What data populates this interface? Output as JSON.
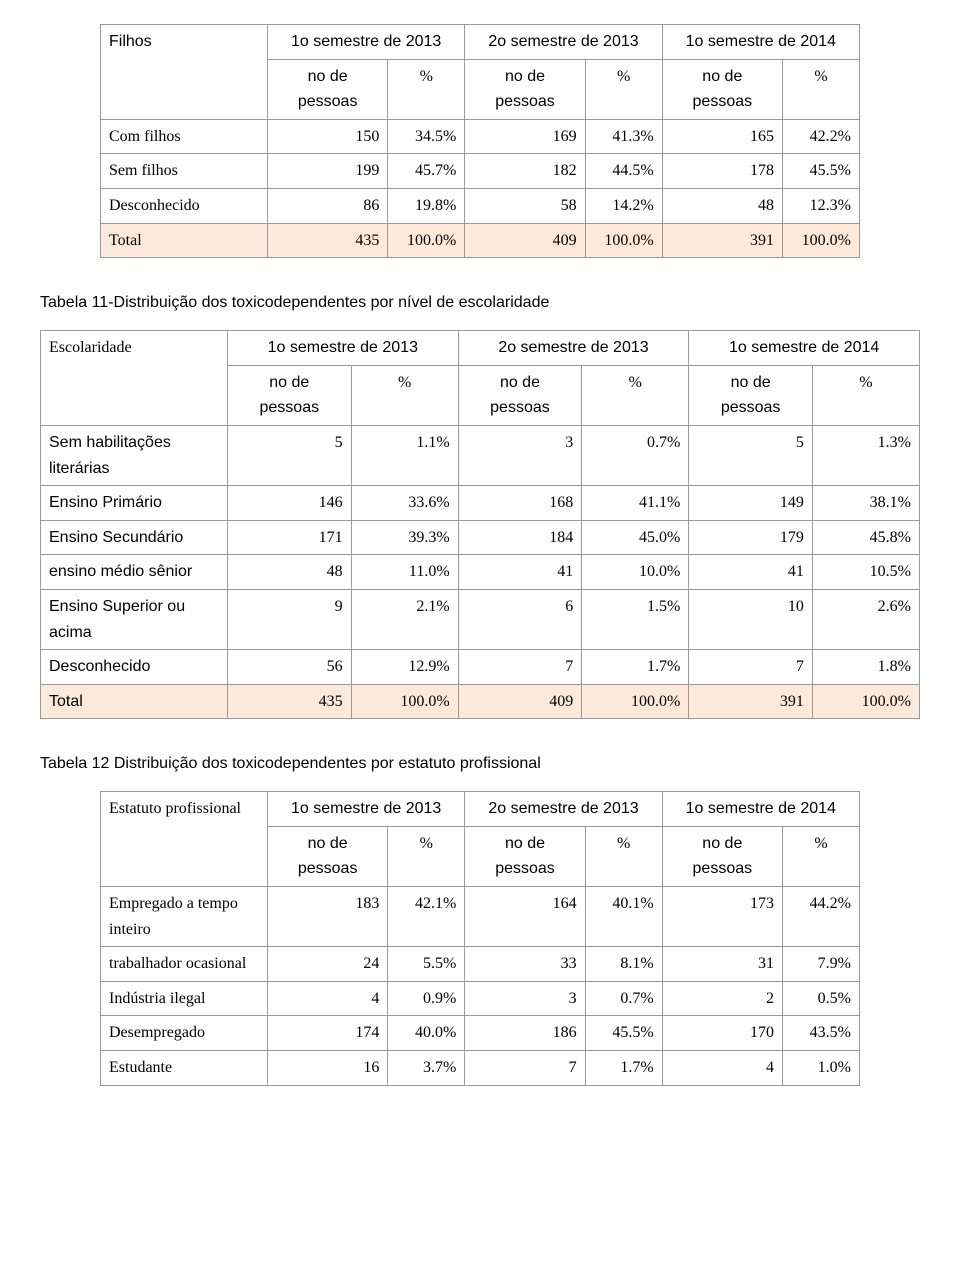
{
  "periods": [
    "1o semestre de 2013",
    "2o semestre de 2013",
    "1o semestre de 2014"
  ],
  "subhead": {
    "n": "no de",
    "n2": "pessoas",
    "pct": "%"
  },
  "t1": {
    "header": "Filhos",
    "rows": [
      [
        "Com filhos",
        "150",
        "34.5%",
        "169",
        "41.3%",
        "165",
        "42.2%",
        false
      ],
      [
        "Sem filhos",
        "199",
        "45.7%",
        "182",
        "44.5%",
        "178",
        "45.5%",
        false
      ],
      [
        "Desconhecido",
        "86",
        "19.8%",
        "58",
        "14.2%",
        "48",
        "12.3%",
        false
      ],
      [
        "Total",
        "435",
        "100.0%",
        "409",
        "100.0%",
        "391",
        "100.0%",
        true
      ]
    ]
  },
  "t2": {
    "caption": "Tabela 11-Distribuição dos toxicodependentes por nível de escolaridade",
    "header": "Escolaridade",
    "rows": [
      [
        "Sem habilitações literárias",
        "5",
        "1.1%",
        "3",
        "0.7%",
        "5",
        "1.3%",
        false
      ],
      [
        "Ensino Primário",
        "146",
        "33.6%",
        "168",
        "41.1%",
        "149",
        "38.1%",
        false
      ],
      [
        "Ensino Secundário",
        "171",
        "39.3%",
        "184",
        "45.0%",
        "179",
        "45.8%",
        false
      ],
      [
        "ensino médio sênior",
        "48",
        "11.0%",
        "41",
        "10.0%",
        "41",
        "10.5%",
        false
      ],
      [
        "Ensino Superior ou acima",
        "9",
        "2.1%",
        "6",
        "1.5%",
        "10",
        "2.6%",
        false
      ],
      [
        "Desconhecido",
        "56",
        "12.9%",
        "7",
        "1.7%",
        "7",
        "1.8%",
        false
      ],
      [
        "Total",
        "435",
        "100.0%",
        "409",
        "100.0%",
        "391",
        "100.0%",
        true
      ]
    ]
  },
  "t3": {
    "caption": "Tabela 12 Distribuição dos toxicodependentes por estatuto profissional",
    "header": "Estatuto profissional",
    "rows": [
      [
        "Empregado a tempo inteiro",
        "183",
        "42.1%",
        "164",
        "40.1%",
        "173",
        "44.2%",
        false
      ],
      [
        "trabalhador ocasional",
        "24",
        "5.5%",
        "33",
        "8.1%",
        "31",
        "7.9%",
        false
      ],
      [
        "Indústria ilegal",
        "4",
        "0.9%",
        "3",
        "0.7%",
        "2",
        "0.5%",
        false
      ],
      [
        "Desempregado",
        "174",
        "40.0%",
        "186",
        "45.5%",
        "170",
        "43.5%",
        false
      ],
      [
        "Estudante",
        "16",
        "3.7%",
        "7",
        "1.7%",
        "4",
        "1.0%",
        false
      ]
    ]
  }
}
